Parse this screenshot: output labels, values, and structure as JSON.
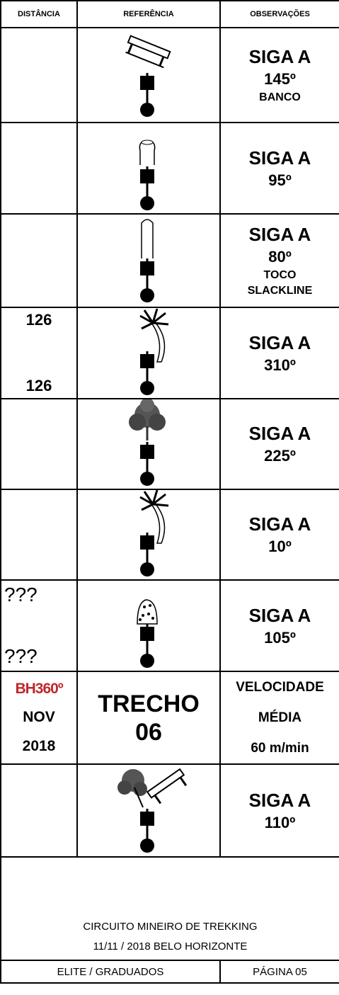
{
  "header": {
    "distance": "DISTÂNCIA",
    "reference": "REFERÊNCIA",
    "notes": "OBSERVAÇÕES"
  },
  "rows": [
    {
      "notes": [
        "SIGA A",
        "145º",
        "BANCO"
      ]
    },
    {
      "notes": [
        "SIGA A",
        "95º"
      ]
    },
    {
      "notes": [
        "SIGA A",
        "80º",
        "TOCO",
        "SLACKLINE"
      ]
    },
    {
      "distance": [
        "126",
        "126"
      ],
      "notes": [
        "SIGA A",
        "310º"
      ]
    },
    {
      "notes": [
        "SIGA A",
        "225º"
      ]
    },
    {
      "notes": [
        "SIGA A",
        "10º"
      ]
    },
    {
      "distance": [
        "???",
        "???"
      ],
      "notes": [
        "SIGA A",
        "105º"
      ]
    },
    {
      "distance": [
        "BH360º",
        "NOV",
        "2018"
      ],
      "reference": [
        "TRECHO",
        "06"
      ],
      "notes": [
        "VELOCIDADE",
        "MÉDIA",
        "60 m/min"
      ]
    },
    {
      "notes": [
        "SIGA A",
        "110º"
      ]
    }
  ],
  "footer": {
    "lines": [
      "CIRCUITO MINEIRO DE TREKKING",
      "11/11 / 2018  BELO HORIZONTE"
    ],
    "category": "ELITE / GRADUADOS",
    "page": "PÁGINA 05"
  }
}
